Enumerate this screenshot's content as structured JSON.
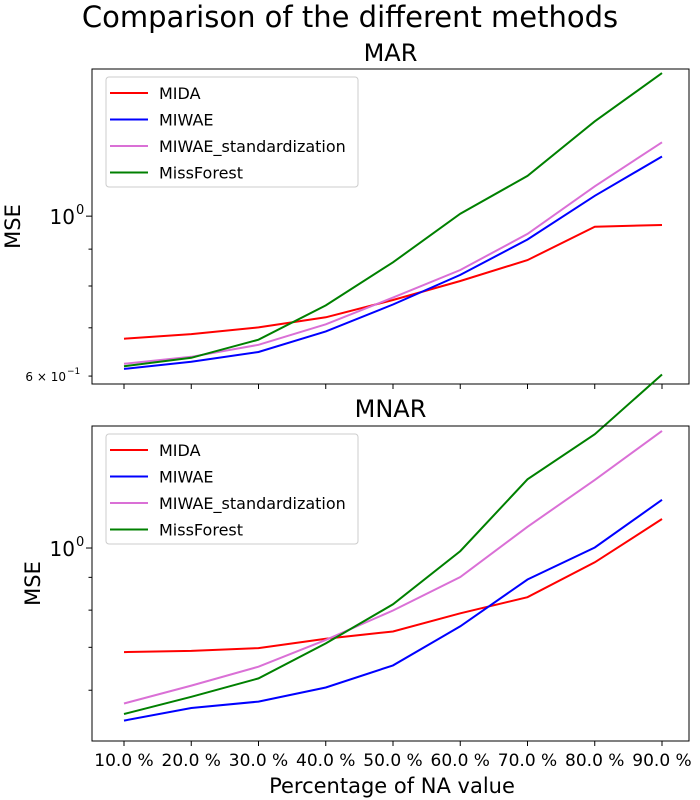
{
  "figure_title": "Comparison of the different methods",
  "xlabel": "Percentage of NA value",
  "chart_data": [
    {
      "type": "line",
      "title": "MAR",
      "ylabel": "MSE",
      "yscale": "log",
      "ylim": [
        0.585,
        1.6
      ],
      "yticks": [
        {
          "value": 1.0,
          "label": "10",
          "exp": "0"
        }
      ],
      "yticks_minor": [
        {
          "value": 0.6,
          "label": "6 × 10",
          "exp": "−1"
        },
        {
          "value": 0.7
        },
        {
          "value": 0.8
        },
        {
          "value": 0.9
        }
      ],
      "x": [
        "10.0 %",
        "20.0 %",
        "30.0 %",
        "40.0 %",
        "50.0 %",
        "60.0 %",
        "70.0 %",
        "80.0 %",
        "90.0 %"
      ],
      "legend": "top-left",
      "grid": false,
      "series": [
        {
          "name": "MIDA",
          "color": "#ff0000",
          "values": [
            0.676,
            0.686,
            0.701,
            0.724,
            0.765,
            0.813,
            0.869,
            0.967,
            0.972
          ]
        },
        {
          "name": "MIWAE",
          "color": "#0000ff",
          "values": [
            0.614,
            0.628,
            0.648,
            0.692,
            0.754,
            0.829,
            0.928,
            1.067,
            1.21
          ]
        },
        {
          "name": "MIWAE_standardization",
          "color": "#da70d6",
          "values": [
            0.624,
            0.638,
            0.663,
            0.708,
            0.771,
            0.842,
            0.945,
            1.1,
            1.266
          ]
        },
        {
          "name": "MissForest",
          "color": "#008000",
          "values": [
            0.619,
            0.636,
            0.674,
            0.752,
            0.863,
            1.008,
            1.137,
            1.354,
            1.579
          ]
        }
      ]
    },
    {
      "type": "line",
      "title": "MNAR",
      "ylabel": "MSE",
      "yscale": "log",
      "ylim": [
        0.5,
        1.55
      ],
      "yticks": [
        {
          "value": 1.0,
          "label": "10",
          "exp": "0"
        }
      ],
      "yticks_minor": [
        {
          "value": 0.6
        },
        {
          "value": 0.7
        },
        {
          "value": 0.8
        },
        {
          "value": 0.9
        }
      ],
      "x": [
        "10.0 %",
        "20.0 %",
        "30.0 %",
        "40.0 %",
        "50.0 %",
        "60.0 %",
        "70.0 %",
        "80.0 %",
        "90.0 %"
      ],
      "legend": "top-left",
      "grid": false,
      "series": [
        {
          "name": "MIDA",
          "color": "#ff0000",
          "values": [
            0.688,
            0.691,
            0.698,
            0.722,
            0.741,
            0.791,
            0.838,
            0.95,
            1.11
          ]
        },
        {
          "name": "MIWAE",
          "color": "#0000ff",
          "values": [
            0.538,
            0.563,
            0.576,
            0.606,
            0.656,
            0.755,
            0.893,
            1.002,
            1.189
          ]
        },
        {
          "name": "MIWAE_standardization",
          "color": "#da70d6",
          "values": [
            0.572,
            0.61,
            0.653,
            0.719,
            0.799,
            0.901,
            1.079,
            1.277,
            1.523
          ]
        },
        {
          "name": "MissForest",
          "color": "#008000",
          "values": [
            0.551,
            0.586,
            0.626,
            0.71,
            0.817,
            0.989,
            1.28,
            1.505,
            1.865
          ]
        }
      ]
    }
  ]
}
